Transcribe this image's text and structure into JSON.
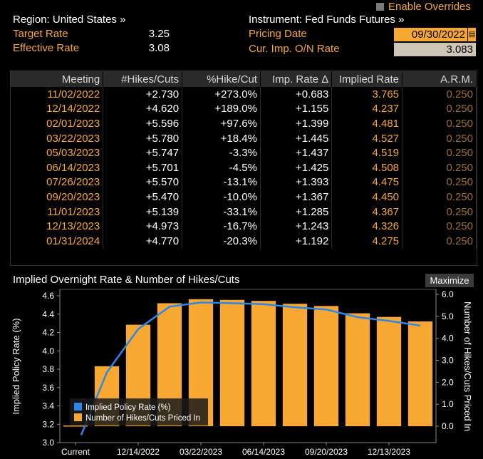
{
  "header": {
    "enable_overrides": "Enable Overrides",
    "region": "Region: United States »",
    "target_rate_label": "Target Rate",
    "target_rate_value": "3.25",
    "effective_rate_label": "Effective Rate",
    "effective_rate_value": "3.08",
    "instrument": "Instrument: Fed Funds Futures »",
    "pricing_date_label": "Pricing Date",
    "pricing_date_value": "09/30/2022",
    "cur_imp_label": "Cur. Imp. O/N Rate",
    "cur_imp_value": "3.083"
  },
  "table": {
    "columns": [
      "Meeting",
      "#Hikes/Cuts",
      "%Hike/Cut",
      "Imp. Rate Δ",
      "Implied Rate",
      "A.R.M."
    ],
    "rows": [
      [
        "11/02/2022",
        "+2.730",
        "+273.0%",
        "+0.683",
        "3.765",
        "0.250"
      ],
      [
        "12/14/2022",
        "+4.620",
        "+189.0%",
        "+1.155",
        "4.237",
        "0.250"
      ],
      [
        "02/01/2023",
        "+5.596",
        "+97.6%",
        "+1.399",
        "4.481",
        "0.250"
      ],
      [
        "03/22/2023",
        "+5.780",
        "+18.4%",
        "+1.445",
        "4.527",
        "0.250"
      ],
      [
        "05/03/2023",
        "+5.747",
        "-3.3%",
        "+1.437",
        "4.519",
        "0.250"
      ],
      [
        "06/14/2023",
        "+5.701",
        "-4.5%",
        "+1.425",
        "4.508",
        "0.250"
      ],
      [
        "07/26/2023",
        "+5.570",
        "-13.1%",
        "+1.393",
        "4.475",
        "0.250"
      ],
      [
        "09/20/2023",
        "+5.470",
        "-10.0%",
        "+1.367",
        "4.450",
        "0.250"
      ],
      [
        "11/01/2023",
        "+5.139",
        "-33.1%",
        "+1.285",
        "4.367",
        "0.250"
      ],
      [
        "12/13/2023",
        "+4.973",
        "-16.7%",
        "+1.243",
        "4.326",
        "0.250"
      ],
      [
        "01/31/2024",
        "+4.770",
        "-20.3%",
        "+1.192",
        "4.275",
        "0.250"
      ]
    ]
  },
  "chart_panel": {
    "title": "Implied Overnight Rate & Number of Hikes/Cuts",
    "maximize": "Maximize"
  },
  "chart_data": {
    "type": "bar",
    "title": "Implied Overnight Rate & Number of Hikes/Cuts",
    "ylabel": "Implied Policy Rate (%)",
    "y2label": "Number of Hikes/Cuts Priced In",
    "categories": [
      "Current",
      "11/02/2022",
      "12/14/2022",
      "02/01/2023",
      "03/22/2023",
      "05/03/2023",
      "06/14/2023",
      "07/26/2023",
      "09/20/2023",
      "11/01/2023",
      "12/13/2023",
      "01/31/2024"
    ],
    "x_tick_labels": [
      "Current",
      "12/14/2022",
      "03/22/2023",
      "06/14/2023",
      "09/20/2023",
      "12/13/2023"
    ],
    "ylim": [
      3.0,
      4.6
    ],
    "yticks": [
      "3.0",
      "3.2",
      "3.4",
      "3.6",
      "3.8",
      "4.0",
      "4.2",
      "4.4",
      "4.6"
    ],
    "y2lim": [
      0.0,
      6.0
    ],
    "y2ticks": [
      "0.0",
      "1.0",
      "2.0",
      "3.0",
      "4.0",
      "5.0",
      "6.0"
    ],
    "series": [
      {
        "name": "Implied Policy Rate (%)",
        "type": "line",
        "axis": "left",
        "color": "#2e86e8",
        "values": [
          3.083,
          3.765,
          4.237,
          4.481,
          4.527,
          4.519,
          4.508,
          4.475,
          4.45,
          4.367,
          4.326,
          4.275
        ]
      },
      {
        "name": "Number of Hikes/Cuts Priced In",
        "type": "bar",
        "axis": "right",
        "color": "#f7a833",
        "values": [
          0.0,
          2.73,
          4.62,
          5.596,
          5.78,
          5.747,
          5.701,
          5.57,
          5.47,
          5.139,
          4.973,
          4.77
        ]
      }
    ],
    "legend_position": "bottom-left",
    "grid": false
  },
  "colors": {
    "accent_orange": "#f7a833",
    "line_blue": "#2e86e8",
    "background": "#000000"
  }
}
